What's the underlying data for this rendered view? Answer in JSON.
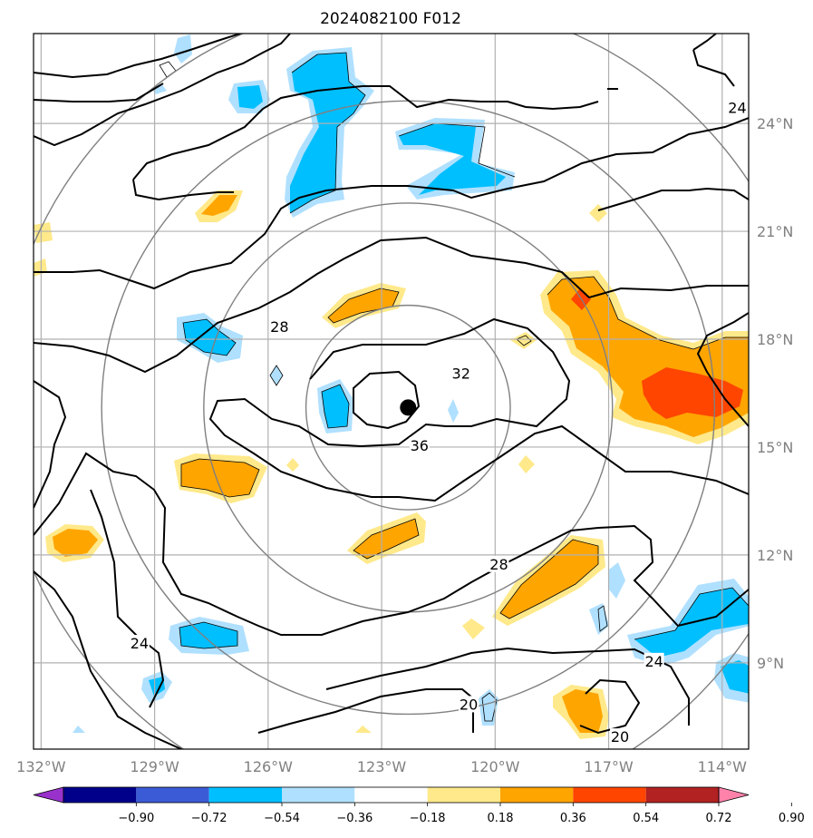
{
  "title": "2024082100 F012",
  "map": {
    "lon_range": [
      -132.2,
      -113.3
    ],
    "lat_range": [
      6.6,
      26.5
    ],
    "lon_ticks": [
      {
        "value": -132,
        "label": "132°W"
      },
      {
        "value": -129,
        "label": "129°W"
      },
      {
        "value": -126,
        "label": "126°W"
      },
      {
        "value": -123,
        "label": "123°W"
      },
      {
        "value": -120,
        "label": "120°W"
      },
      {
        "value": -117,
        "label": "117°W"
      },
      {
        "value": -114,
        "label": "114°W"
      }
    ],
    "lat_ticks": [
      {
        "value": 9,
        "label": "9°N"
      },
      {
        "value": 12,
        "label": "12°N"
      },
      {
        "value": 15,
        "label": "15°N"
      },
      {
        "value": 18,
        "label": "18°N"
      },
      {
        "value": 21,
        "label": "21°N"
      },
      {
        "value": 24,
        "label": "24°N"
      }
    ],
    "grid": true,
    "center_marker": {
      "lon": -122.3,
      "lat": 16.1
    },
    "range_rings_deg": [
      2.7,
      5.4,
      8.1,
      10.8
    ],
    "contour_labels": [
      {
        "text": "28",
        "lon": -125.7,
        "lat": 18.3
      },
      {
        "text": "32",
        "lon": -120.9,
        "lat": 17.0
      },
      {
        "text": "36",
        "lon": -122.0,
        "lat": 15.0
      },
      {
        "text": "24",
        "lon": -129.4,
        "lat": 9.5
      },
      {
        "text": "28",
        "lon": -119.9,
        "lat": 11.7
      },
      {
        "text": "24",
        "lon": -115.8,
        "lat": 9.0
      },
      {
        "text": "20",
        "lon": -120.7,
        "lat": 7.8
      },
      {
        "text": "20",
        "lon": -116.7,
        "lat": 6.9
      },
      {
        "text": "24",
        "lon": -113.6,
        "lat": 24.4
      }
    ],
    "colors": {
      "neg_090": "#9932CC",
      "neg_072": "#00008B",
      "neg_054": "#3B5BD6",
      "neg_036": "#00BFFF",
      "neg_018": "#B0E0FF",
      "zero": "#FFFFFF",
      "pos_018": "#FFE98A",
      "pos_036": "#FFA500",
      "pos_054": "#FF4500",
      "pos_072": "#B22222",
      "pos_090": "#FF82AB"
    }
  },
  "colorbar": {
    "ticks": [
      "−0.90",
      "−0.72",
      "−0.54",
      "−0.36",
      "−0.18",
      "0.18",
      "0.36",
      "0.54",
      "0.72",
      "0.90"
    ],
    "colors": [
      "#9932CC",
      "#00008B",
      "#3B5BD6",
      "#00BFFF",
      "#B0E0FF",
      "#FFFFFF",
      "#FFE98A",
      "#FFA500",
      "#FF4500",
      "#B22222",
      "#FF82AB"
    ]
  }
}
